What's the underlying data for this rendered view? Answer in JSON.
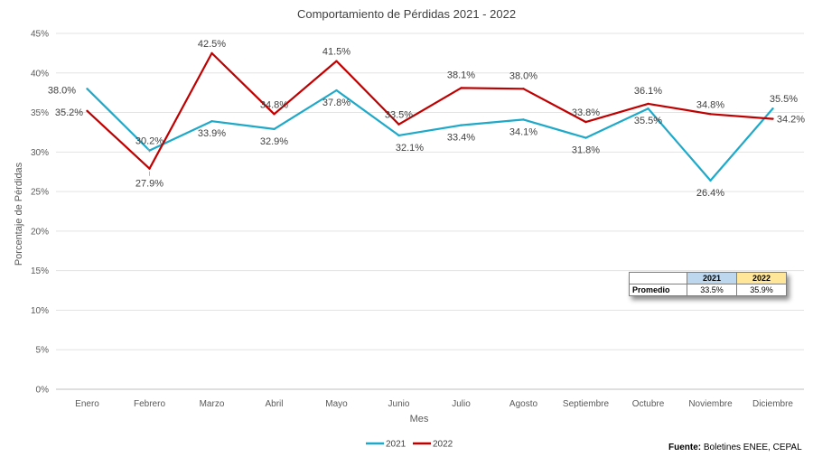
{
  "chart_data": {
    "type": "line",
    "title": "Comportamiento de Pérdidas 2021 - 2022",
    "xlabel": "Mes",
    "ylabel": "Porcentaje de Pérdidas",
    "categories": [
      "Enero",
      "Febrero",
      "Marzo",
      "Abril",
      "Mayo",
      "Junio",
      "Julio",
      "Agosto",
      "Septiembre",
      "Octubre",
      "Noviembre",
      "Diciembre"
    ],
    "ylim": [
      0,
      45
    ],
    "yticks": [
      "0%",
      "5%",
      "10%",
      "15%",
      "20%",
      "25%",
      "30%",
      "35%",
      "40%",
      "45%"
    ],
    "grid": true,
    "legend_position": "bottom",
    "series": [
      {
        "name": "2021",
        "color": "#1fa9c9",
        "values": [
          38.0,
          30.2,
          33.9,
          32.9,
          37.8,
          32.1,
          33.4,
          34.1,
          31.8,
          35.5,
          26.4,
          35.5
        ],
        "labels": [
          "38.0%",
          "30.2%",
          "33.9%",
          "32.9%",
          "37.8%",
          "32.1%",
          "33.4%",
          "34.1%",
          "31.8%",
          "35.5%",
          "26.4%",
          "35.5%"
        ]
      },
      {
        "name": "2022",
        "color": "#c00000",
        "values": [
          35.2,
          27.9,
          42.5,
          34.8,
          41.5,
          33.5,
          38.1,
          38.0,
          33.8,
          36.1,
          34.8,
          34.2
        ],
        "labels": [
          "35.2%",
          "27.9%",
          "42.5%",
          "34.8%",
          "41.5%",
          "33.5%",
          "38.1%",
          "38.0%",
          "33.8%",
          "36.1%",
          "34.8%",
          "34.2%"
        ]
      }
    ]
  },
  "summary_table": {
    "header_2021": "2021",
    "header_2022": "2022",
    "row_label": "Promedio",
    "value_2021": "33.5%",
    "value_2022": "35.9%"
  },
  "source": {
    "label": "Fuente:",
    "text": " Boletines ENEE, CEPAL"
  }
}
